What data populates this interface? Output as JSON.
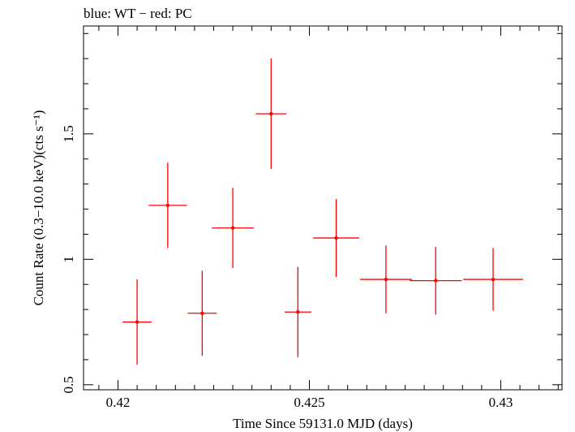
{
  "chart_data": {
    "type": "scatter",
    "title": "blue: WT − red: PC",
    "xlabel": "Time Since 59131.0 MJD (days)",
    "ylabel": "Count Rate (0.3−10.0 keV)(cts s⁻¹)",
    "xlim": [
      0.4191,
      0.4316
    ],
    "ylim": [
      0.48,
      1.93
    ],
    "x_ticks": [
      {
        "value": 0.42,
        "label": "0.42"
      },
      {
        "value": 0.425,
        "label": "0.425"
      },
      {
        "value": 0.43,
        "label": "0.43"
      }
    ],
    "y_ticks": [
      {
        "value": 0.5,
        "label": "0.5"
      },
      {
        "value": 1.0,
        "label": "1"
      },
      {
        "value": 1.5,
        "label": "1.5"
      }
    ],
    "series": [
      {
        "color": "#ff0000",
        "points": [
          {
            "x": 0.4205,
            "xerr": 0.00038,
            "y": 0.75,
            "yerr": 0.17
          },
          {
            "x": 0.4213,
            "xerr": 0.0005,
            "y": 1.215,
            "yerr": 0.17
          },
          {
            "x": 0.4222,
            "xerr": 0.00038,
            "y": 0.785,
            "yerr": 0.17
          },
          {
            "x": 0.423,
            "xerr": 0.00055,
            "y": 1.125,
            "yerr": 0.16
          },
          {
            "x": 0.424,
            "xerr": 0.0004,
            "y": 1.58,
            "yerr": 0.22
          },
          {
            "x": 0.4247,
            "xerr": 0.00035,
            "y": 0.79,
            "yerr": 0.18
          },
          {
            "x": 0.4257,
            "xerr": 0.0006,
            "y": 1.085,
            "yerr": 0.155
          },
          {
            "x": 0.427,
            "xerr": 0.00068,
            "y": 0.92,
            "yerr": 0.135
          },
          {
            "x": 0.4283,
            "xerr": 0.00068,
            "y": 0.915,
            "yerr": 0.135
          },
          {
            "x": 0.4298,
            "xerr": 0.00078,
            "y": 0.92,
            "yerr": 0.125
          }
        ]
      }
    ]
  }
}
